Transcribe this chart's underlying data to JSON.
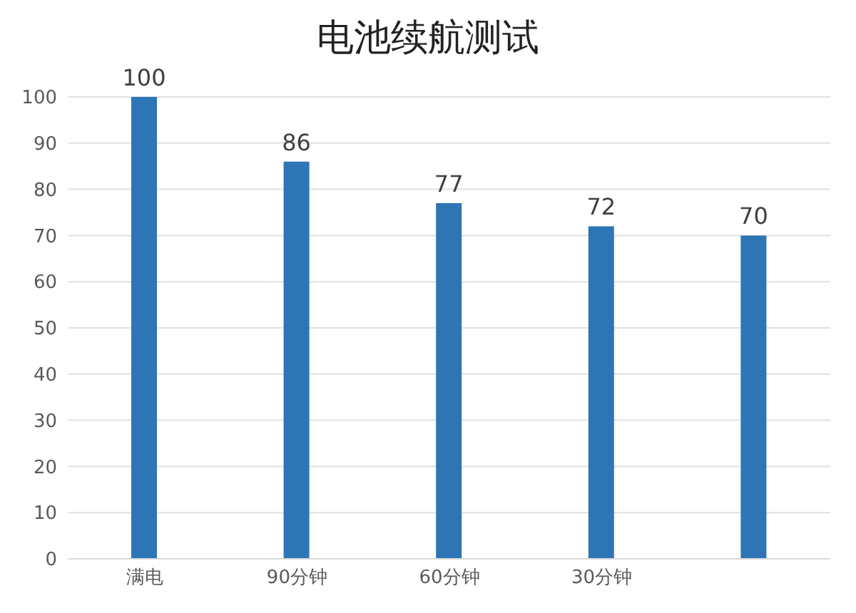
{
  "chart_data": {
    "type": "bar",
    "title": "电池续航测试",
    "categories": [
      "满电",
      "90分钟",
      "60分钟",
      "30分钟",
      null
    ],
    "values": [
      100,
      86,
      77,
      72,
      70
    ],
    "color": "#2e75b6",
    "ylim": [
      0,
      100
    ],
    "yticks": [
      0,
      10,
      20,
      30,
      40,
      50,
      60,
      70,
      80,
      90,
      100
    ],
    "grid": "y",
    "data_labels": true
  }
}
